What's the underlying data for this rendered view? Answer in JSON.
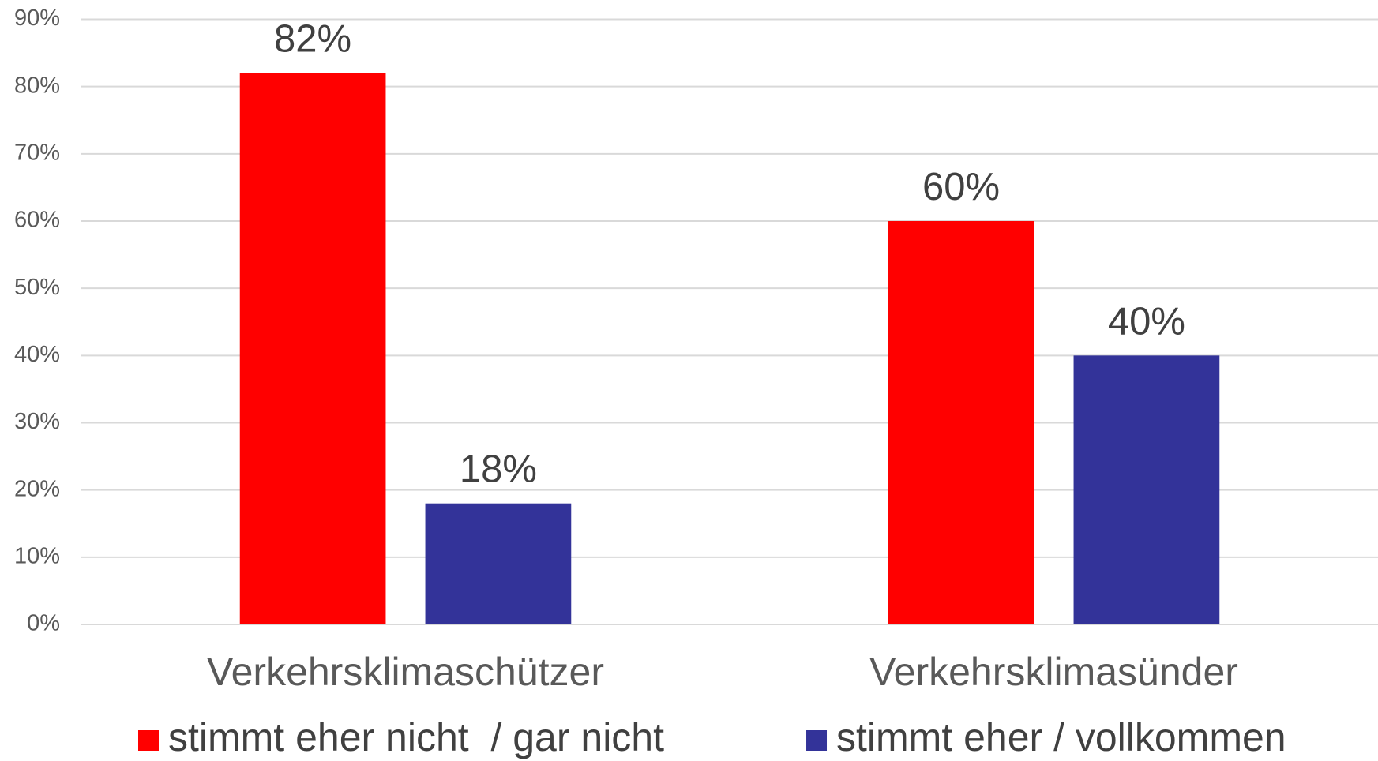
{
  "chart_data": {
    "type": "bar",
    "categories": [
      "Verkehrsklimaschützer",
      "Verkehrsklimasünder"
    ],
    "series": [
      {
        "name": "stimmt eher nicht  / gar nicht",
        "color": "#ff0000",
        "values": [
          82,
          60
        ],
        "value_labels": [
          "82%",
          "60%"
        ]
      },
      {
        "name": "stimmt eher / vollkommen",
        "color": "#333399",
        "values": [
          18,
          40
        ],
        "value_labels": [
          "18%",
          "40%"
        ]
      }
    ],
    "ylim": [
      0,
      90
    ],
    "yticks": [
      {
        "value": 0,
        "label": "0%"
      },
      {
        "value": 10,
        "label": "10%"
      },
      {
        "value": 20,
        "label": "20%"
      },
      {
        "value": 30,
        "label": "30%"
      },
      {
        "value": 40,
        "label": "40%"
      },
      {
        "value": 50,
        "label": "50%"
      },
      {
        "value": 60,
        "label": "60%"
      },
      {
        "value": 70,
        "label": "70%"
      },
      {
        "value": 80,
        "label": "80%"
      },
      {
        "value": 90,
        "label": "90%"
      }
    ],
    "grid": true,
    "legend": "bottom"
  }
}
